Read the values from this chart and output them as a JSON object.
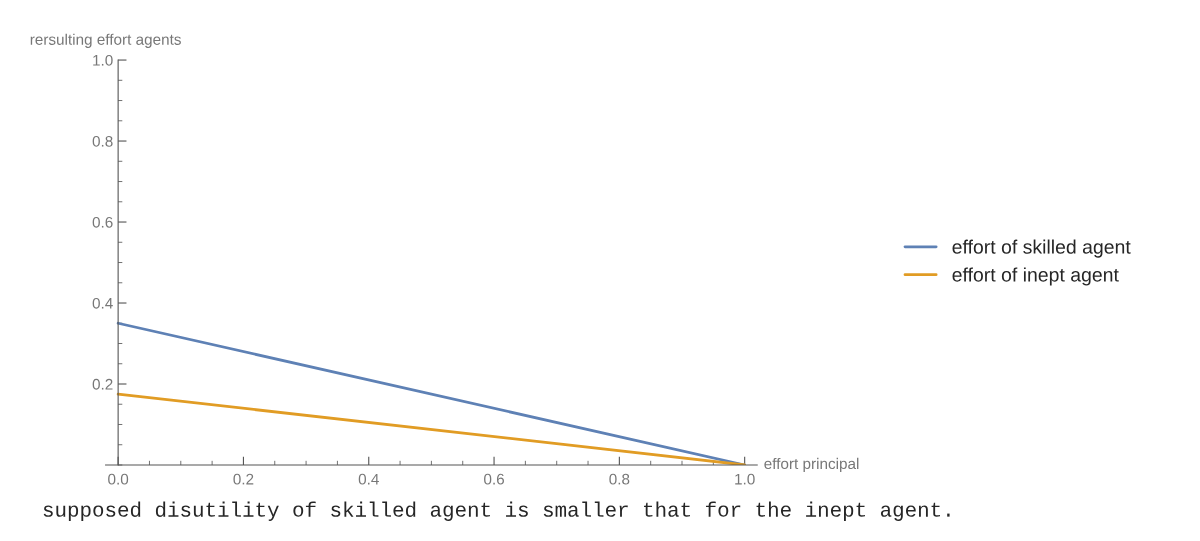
{
  "chart_data": {
    "type": "line",
    "xlabel": "effort principal",
    "ylabel": "rersulting effort agents",
    "x": [
      0.0,
      1.0
    ],
    "series": [
      {
        "name": "effort of skilled agent",
        "color": "#5e81b5",
        "values": [
          0.35,
          0.0
        ]
      },
      {
        "name": "effort of inept agent",
        "color": "#e19c24",
        "values": [
          0.175,
          0.0
        ]
      }
    ],
    "xlim": [
      -0.02,
      1.02
    ],
    "ylim": [
      0,
      1
    ],
    "xticks": [
      {
        "value": 0,
        "label": "0.0"
      },
      0.2,
      0.4,
      0.6,
      0.8,
      {
        "value": 1,
        "label": "1.0"
      }
    ],
    "yticks": [
      0.2,
      0.4,
      0.6,
      0.8,
      {
        "value": 1,
        "label": "1.0"
      }
    ],
    "grid": false,
    "legend": "right",
    "marker": "none",
    "line_style": "solid",
    "annotations": [
      "supposed disutility of skilled agent is smaller that for the inept agent."
    ]
  }
}
